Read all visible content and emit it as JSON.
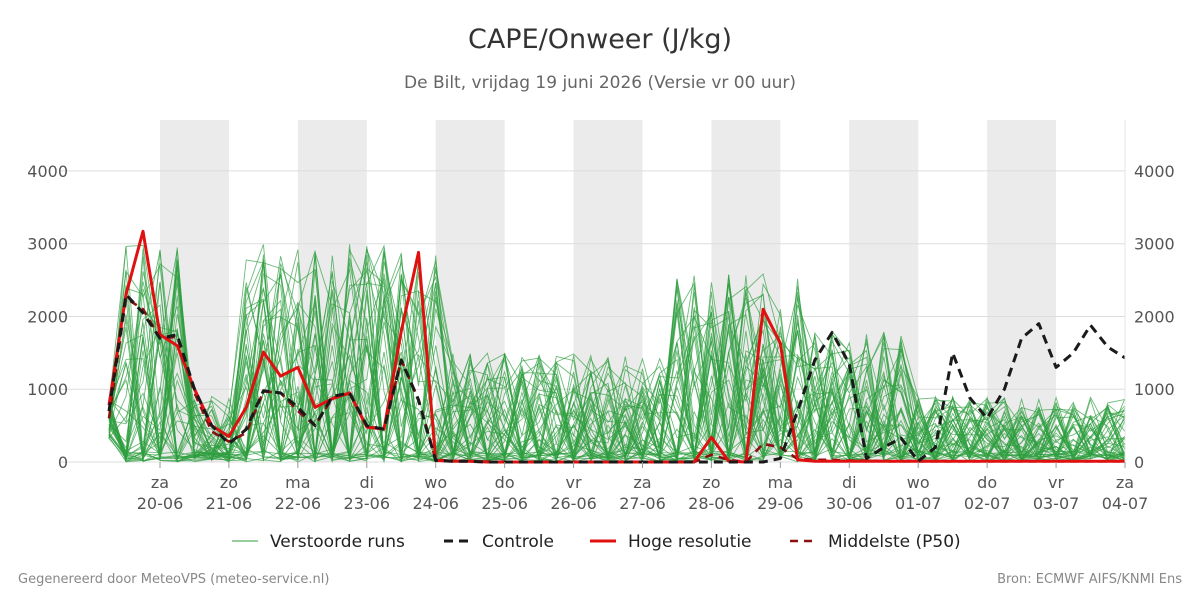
{
  "title": "CAPE/Onweer (J/kg)",
  "subtitle": "De Bilt, vrijdag 19 juni 2026 (Versie vr 00 uur)",
  "footer": {
    "left": "Gegenereerd door MeteoVPS (meteo-service.nl)",
    "right": "Bron: ECMWF AIFS/KNMI Ens"
  },
  "colors": {
    "ensemble": "#2e9e3e",
    "control": "#1a1a1a",
    "high_res": "#e01010",
    "median": "#8b1010",
    "shade": "#ebebeb",
    "grid": "#dddddd"
  },
  "chart_data": {
    "type": "line",
    "title": "CAPE/Onweer (J/kg)",
    "xlabel": "",
    "ylabel": "",
    "ylim": [
      0,
      4700
    ],
    "xlim": [
      -0.75,
      14
    ],
    "yticks": [
      0,
      1000,
      2000,
      3000,
      4000
    ],
    "grid": true,
    "legend_position": "bottom",
    "x_ticks": [
      {
        "day": "za",
        "date": "20-06"
      },
      {
        "day": "zo",
        "date": "21-06"
      },
      {
        "day": "ma",
        "date": "22-06"
      },
      {
        "day": "di",
        "date": "23-06"
      },
      {
        "day": "wo",
        "date": "24-06"
      },
      {
        "day": "do",
        "date": "25-06"
      },
      {
        "day": "vr",
        "date": "26-06"
      },
      {
        "day": "za",
        "date": "27-06"
      },
      {
        "day": "zo",
        "date": "28-06"
      },
      {
        "day": "ma",
        "date": "29-06"
      },
      {
        "day": "di",
        "date": "30-06"
      },
      {
        "day": "wo",
        "date": "01-07"
      },
      {
        "day": "do",
        "date": "02-07"
      },
      {
        "day": "vr",
        "date": "03-07"
      },
      {
        "day": "za",
        "date": "04-07"
      }
    ],
    "x_units": "days from 20-06 00:00",
    "shaded_days": [
      0,
      2,
      4,
      6,
      8,
      10,
      12
    ],
    "legend": [
      "Verstoorde runs",
      "Controle",
      "Hoge resolutie",
      "Middelste (P50)"
    ],
    "series": [
      {
        "name": "Controle",
        "style": "dashed",
        "x": [
          -0.75,
          -0.5,
          -0.25,
          0,
          0.25,
          0.5,
          0.75,
          1,
          1.25,
          1.5,
          1.75,
          2,
          2.25,
          2.5,
          2.75,
          3,
          3.25,
          3.5,
          3.75,
          4,
          4.25,
          4.5,
          4.75,
          5,
          5.25,
          5.5,
          5.75,
          6,
          6.25,
          6.5,
          6.75,
          7,
          7.25,
          7.5,
          7.75,
          8,
          8.25,
          8.5,
          8.75,
          9,
          9.25,
          9.5,
          9.75,
          10,
          10.25,
          10.5,
          10.75,
          11,
          11.25,
          11.5,
          11.75,
          12,
          12.25,
          12.5,
          12.75,
          13,
          13.25,
          13.5,
          13.75,
          14
        ],
        "values": [
          700,
          2300,
          2050,
          1700,
          1750,
          1000,
          500,
          250,
          450,
          980,
          950,
          750,
          500,
          900,
          950,
          500,
          450,
          1400,
          850,
          20,
          10,
          10,
          0,
          0,
          0,
          0,
          0,
          0,
          0,
          0,
          0,
          0,
          0,
          0,
          0,
          0,
          0,
          0,
          0,
          50,
          700,
          1400,
          1780,
          1350,
          50,
          200,
          330,
          10,
          200,
          1500,
          880,
          600,
          1000,
          1700,
          1900,
          1300,
          1500,
          1880,
          1580,
          1430
        ]
      },
      {
        "name": "Hoge resolutie",
        "style": "solid",
        "x": [
          -0.75,
          -0.5,
          -0.25,
          0,
          0.25,
          0.5,
          0.75,
          1,
          1.25,
          1.5,
          1.75,
          2,
          2.25,
          2.5,
          2.75,
          3,
          3.25,
          3.5,
          3.75,
          4,
          4.25,
          4.5,
          4.75,
          5,
          5.25,
          5.5,
          5.75,
          6,
          6.25,
          6.5,
          6.75,
          7,
          7.25,
          7.5,
          7.75,
          8,
          8.25,
          8.5,
          8.75,
          9,
          9.25,
          9.5,
          9.75,
          10,
          10.25,
          10.5,
          10.75,
          11,
          11.25,
          11.5,
          11.75,
          12,
          12.25,
          12.5,
          12.75,
          13,
          13.25,
          13.5,
          13.75,
          14
        ],
        "values": [
          780,
          2300,
          3170,
          1750,
          1600,
          1000,
          500,
          350,
          750,
          1510,
          1180,
          1300,
          750,
          870,
          950,
          480,
          450,
          1800,
          2880,
          20,
          10,
          10,
          0,
          0,
          0,
          0,
          0,
          0,
          0,
          0,
          0,
          0,
          0,
          0,
          0,
          340,
          10,
          0,
          2100,
          1630,
          30,
          10,
          10,
          10,
          10,
          10,
          10,
          10,
          10,
          10,
          10,
          10,
          10,
          10,
          10,
          10,
          10,
          10,
          10,
          10
        ]
      },
      {
        "name": "Middelste (P50)",
        "style": "dashed",
        "x": [
          -0.75,
          -0.5,
          -0.25,
          0,
          0.25,
          0.5,
          0.75,
          1,
          1.25,
          1.5,
          1.75,
          2,
          2.25,
          2.5,
          2.75,
          3,
          3.25,
          3.5,
          3.75,
          4,
          4.25,
          4.5,
          4.75,
          5,
          5.25,
          5.5,
          5.75,
          6,
          6.25,
          6.5,
          6.75,
          7,
          7.25,
          7.5,
          7.75,
          8,
          8.25,
          8.5,
          8.75,
          9,
          9.25,
          9.5,
          9.75,
          10,
          10.25,
          10.5,
          10.75,
          11,
          11.25,
          11.5,
          11.75,
          12,
          12.25,
          12.5,
          12.75,
          13,
          13.25,
          13.5,
          13.75,
          14
        ],
        "values": [
          600,
          2250,
          2100,
          1700,
          1720,
          950,
          420,
          280,
          400,
          970,
          950,
          700,
          500,
          880,
          940,
          480,
          470,
          1400,
          860,
          30,
          15,
          10,
          5,
          0,
          0,
          0,
          0,
          0,
          0,
          0,
          0,
          0,
          0,
          0,
          0,
          100,
          30,
          0,
          250,
          200,
          40,
          30,
          30,
          20,
          20,
          10,
          10,
          10,
          10,
          10,
          10,
          10,
          10,
          10,
          10,
          10,
          10,
          10,
          10,
          10
        ]
      }
    ]
  }
}
